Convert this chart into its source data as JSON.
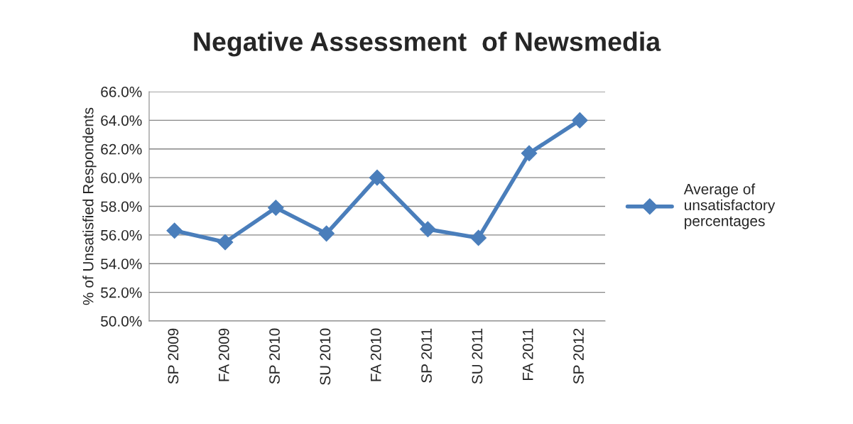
{
  "chart_data": {
    "type": "line",
    "title": "Negative Assessment  of Newsmedia",
    "ylabel": "% of Unsatisfied Respondents",
    "categories": [
      "SP 2009",
      "FA 2009",
      "SP 2010",
      "SU 2010",
      "FA 2010",
      "SP 2011",
      "SU 2011",
      "FA 2011",
      "SP 2012"
    ],
    "series": [
      {
        "name": "Average of unsatisfactory percentages",
        "color": "#4a7ebb",
        "values": [
          56.3,
          55.5,
          57.9,
          56.1,
          60.0,
          56.4,
          55.8,
          61.7,
          64.0
        ]
      }
    ],
    "ylim": [
      50,
      66
    ],
    "yticks": [
      {
        "value": 50,
        "label": "50.0%"
      },
      {
        "value": 52,
        "label": "52.0%"
      },
      {
        "value": 54,
        "label": "54.0%"
      },
      {
        "value": 56,
        "label": "56.0%"
      },
      {
        "value": 58,
        "label": "58.0%"
      },
      {
        "value": 60,
        "label": "60.0%"
      },
      {
        "value": 62,
        "label": "62.0%"
      },
      {
        "value": 64,
        "label": "64.0%"
      },
      {
        "value": 66,
        "label": "66.0%"
      }
    ],
    "grid": "y",
    "legend": "right",
    "marker": "diamond",
    "line_style": "solid"
  }
}
